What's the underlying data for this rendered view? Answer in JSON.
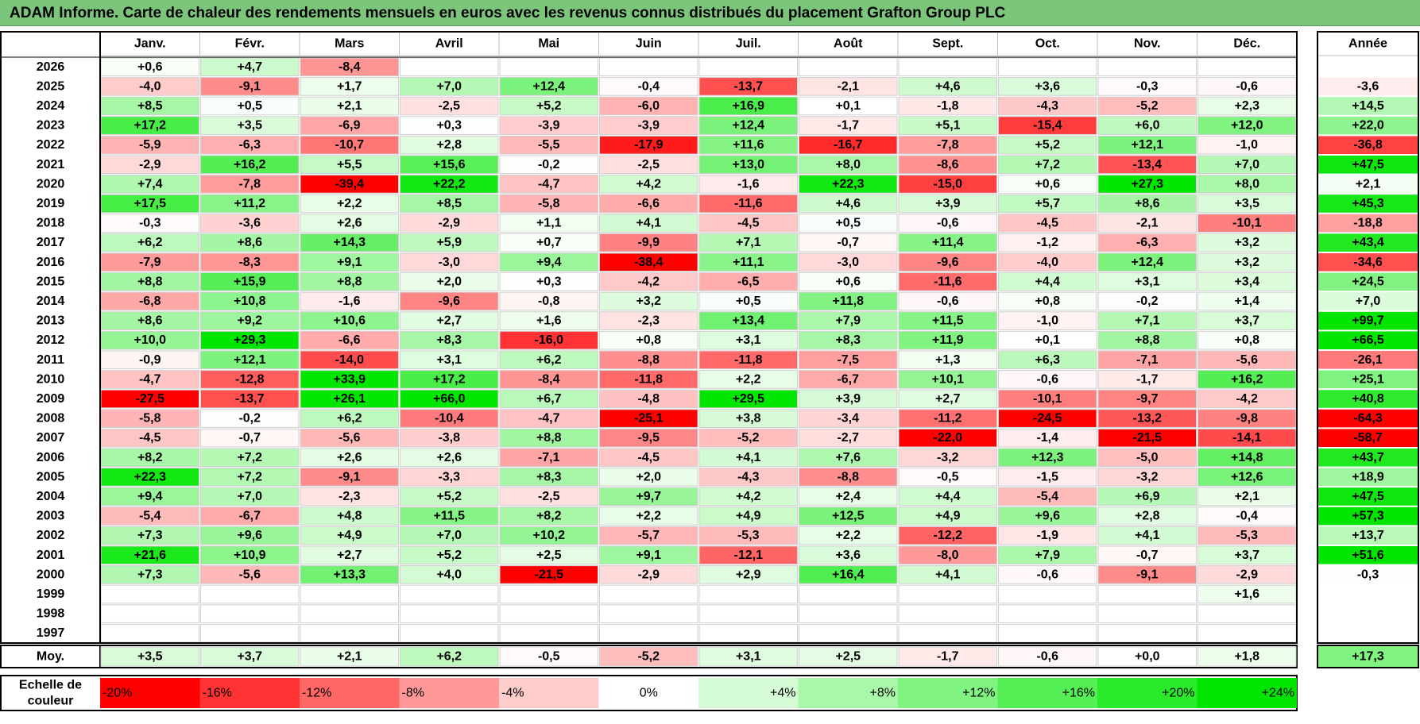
{
  "title": "ADAM Informe. Carte de chaleur des rendements mensuels en euros avec les revenus connus distribués du placement Grafton Group PLC",
  "chart_data": {
    "type": "heatmap",
    "columns": [
      "Janv.",
      "Févr.",
      "Mars",
      "Avril",
      "Mai",
      "Juin",
      "Juil.",
      "Août",
      "Sept.",
      "Oct.",
      "Nov.",
      "Déc."
    ],
    "year_column_label": "Année",
    "average_label": "Moy.",
    "scale_label": "Echelle de couleur",
    "rows": [
      {
        "year": "2026",
        "values": [
          "+0,6",
          "+4,7",
          "-8,4",
          "",
          "",
          "",
          "",
          "",
          "",
          "",
          "",
          ""
        ],
        "annual": ""
      },
      {
        "year": "2025",
        "values": [
          "-4,0",
          "-9,1",
          "+1,7",
          "+7,0",
          "+12,4",
          "-0,4",
          "-13,7",
          "-2,1",
          "+4,6",
          "+3,6",
          "-0,3",
          "-0,6"
        ],
        "annual": "-3,6"
      },
      {
        "year": "2024",
        "values": [
          "+8,5",
          "+0,5",
          "+2,1",
          "-2,5",
          "+5,2",
          "-6,0",
          "+16,9",
          "+0,1",
          "-1,8",
          "-4,3",
          "-5,2",
          "+2,3"
        ],
        "annual": "+14,5"
      },
      {
        "year": "2023",
        "values": [
          "+17,2",
          "+3,5",
          "-6,9",
          "+0,3",
          "-3,9",
          "-3,9",
          "+12,4",
          "-1,7",
          "+5,1",
          "-15,4",
          "+6,0",
          "+12,0"
        ],
        "annual": "+22,0"
      },
      {
        "year": "2022",
        "values": [
          "-5,9",
          "-6,3",
          "-10,7",
          "+2,8",
          "-5,5",
          "-17,9",
          "+11,6",
          "-16,7",
          "-7,8",
          "+5,2",
          "+12,1",
          "-1,0"
        ],
        "annual": "-36,8"
      },
      {
        "year": "2021",
        "values": [
          "-2,9",
          "+16,2",
          "+5,5",
          "+15,6",
          "-0,2",
          "-2,5",
          "+13,0",
          "+8,0",
          "-8,6",
          "+7,2",
          "-13,4",
          "+7,0"
        ],
        "annual": "+47,5"
      },
      {
        "year": "2020",
        "values": [
          "+7,4",
          "-7,8",
          "-39,4",
          "+22,2",
          "-4,7",
          "+4,2",
          "-1,6",
          "+22,3",
          "-15,0",
          "+0,6",
          "+27,3",
          "+8,0"
        ],
        "annual": "+2,1"
      },
      {
        "year": "2019",
        "values": [
          "+17,5",
          "+11,2",
          "+2,2",
          "+8,5",
          "-5,8",
          "-6,6",
          "-11,6",
          "+4,6",
          "+3,9",
          "+5,7",
          "+8,6",
          "+3,5"
        ],
        "annual": "+45,3"
      },
      {
        "year": "2018",
        "values": [
          "-0,3",
          "-3,6",
          "+2,6",
          "-2,9",
          "+1,1",
          "+4,1",
          "-4,5",
          "+0,5",
          "-0,6",
          "-4,5",
          "-2,1",
          "-10,1"
        ],
        "annual": "-18,8"
      },
      {
        "year": "2017",
        "values": [
          "+6,2",
          "+8,6",
          "+14,3",
          "+5,9",
          "+0,7",
          "-9,9",
          "+7,1",
          "-0,7",
          "+11,4",
          "-1,2",
          "-6,3",
          "+3,2"
        ],
        "annual": "+43,4"
      },
      {
        "year": "2016",
        "values": [
          "-7,9",
          "-8,3",
          "+9,1",
          "-3,0",
          "+9,4",
          "-38,4",
          "+11,1",
          "-3,0",
          "-9,6",
          "-4,0",
          "+12,4",
          "+3,2"
        ],
        "annual": "-34,6"
      },
      {
        "year": "2015",
        "values": [
          "+8,8",
          "+15,9",
          "+8,8",
          "+2,0",
          "+0,3",
          "-4,2",
          "-6,5",
          "+0,6",
          "-11,6",
          "+4,4",
          "+3,1",
          "+3,4"
        ],
        "annual": "+24,5"
      },
      {
        "year": "2014",
        "values": [
          "-6,8",
          "+10,8",
          "-1,6",
          "-9,6",
          "-0,8",
          "+3,2",
          "+0,5",
          "+11,8",
          "-0,6",
          "+0,8",
          "-0,2",
          "+1,4"
        ],
        "annual": "+7,0"
      },
      {
        "year": "2013",
        "values": [
          "+8,6",
          "+9,2",
          "+10,6",
          "+2,7",
          "+1,6",
          "-2,3",
          "+13,4",
          "+7,9",
          "+11,5",
          "-1,0",
          "+7,1",
          "+3,7"
        ],
        "annual": "+99,7"
      },
      {
        "year": "2012",
        "values": [
          "+10,0",
          "+29,3",
          "-6,6",
          "+8,3",
          "-16,0",
          "+0,8",
          "+3,1",
          "+8,3",
          "+11,9",
          "+0,1",
          "+8,8",
          "+0,8"
        ],
        "annual": "+66,5"
      },
      {
        "year": "2011",
        "values": [
          "-0,9",
          "+12,1",
          "-14,0",
          "+3,1",
          "+6,2",
          "-8,8",
          "-11,8",
          "-7,5",
          "+1,3",
          "+6,3",
          "-7,1",
          "-5,6"
        ],
        "annual": "-26,1"
      },
      {
        "year": "2010",
        "values": [
          "-4,7",
          "-12,8",
          "+33,9",
          "+17,2",
          "-8,4",
          "-11,8",
          "+2,2",
          "-6,7",
          "+10,1",
          "-0,6",
          "-1,7",
          "+16,2"
        ],
        "annual": "+25,1"
      },
      {
        "year": "2009",
        "values": [
          "-27,5",
          "-13,7",
          "+26,1",
          "+66,0",
          "+6,7",
          "-4,8",
          "+29,5",
          "+3,9",
          "+2,7",
          "-10,1",
          "-9,7",
          "-4,2"
        ],
        "annual": "+40,8"
      },
      {
        "year": "2008",
        "values": [
          "-5,8",
          "-0,2",
          "+6,2",
          "-10,4",
          "-4,7",
          "-25,1",
          "+3,8",
          "-3,4",
          "-11,2",
          "-24,5",
          "-13,2",
          "-9,8"
        ],
        "annual": "-64,3"
      },
      {
        "year": "2007",
        "values": [
          "-4,5",
          "-0,7",
          "-5,6",
          "-3,8",
          "+8,8",
          "-9,5",
          "-5,2",
          "-2,7",
          "-22,0",
          "-1,4",
          "-21,5",
          "-14,1"
        ],
        "annual": "-58,7"
      },
      {
        "year": "2006",
        "values": [
          "+8,2",
          "+7,2",
          "+2,6",
          "+2,6",
          "-7,1",
          "-4,5",
          "+4,1",
          "+7,6",
          "-3,2",
          "+12,3",
          "-5,0",
          "+14,8"
        ],
        "annual": "+43,7"
      },
      {
        "year": "2005",
        "values": [
          "+22,3",
          "+7,2",
          "-9,1",
          "-3,3",
          "+8,3",
          "+2,0",
          "-4,3",
          "-8,8",
          "-0,5",
          "-1,5",
          "-3,2",
          "+12,6"
        ],
        "annual": "+18,9"
      },
      {
        "year": "2004",
        "values": [
          "+9,4",
          "+7,0",
          "-2,3",
          "+5,2",
          "-2,5",
          "+9,7",
          "+4,2",
          "+2,4",
          "+4,4",
          "-5,4",
          "+6,9",
          "+2,1"
        ],
        "annual": "+47,5"
      },
      {
        "year": "2003",
        "values": [
          "-5,4",
          "-6,7",
          "+4,8",
          "+11,5",
          "+8,2",
          "+2,2",
          "+4,9",
          "+12,5",
          "+4,9",
          "+9,6",
          "+2,8",
          "-0,4"
        ],
        "annual": "+57,3"
      },
      {
        "year": "2002",
        "values": [
          "+7,3",
          "+9,6",
          "+4,9",
          "+7,0",
          "+10,2",
          "-5,7",
          "-5,3",
          "+2,2",
          "-12,2",
          "-1,9",
          "+4,1",
          "-5,3"
        ],
        "annual": "+13,7"
      },
      {
        "year": "2001",
        "values": [
          "+21,6",
          "+10,9",
          "+2,7",
          "+5,2",
          "+2,5",
          "+9,1",
          "-12,1",
          "+3,6",
          "-8,0",
          "+7,9",
          "-0,7",
          "+3,7"
        ],
        "annual": "+51,6"
      },
      {
        "year": "2000",
        "values": [
          "+7,3",
          "-5,6",
          "+13,3",
          "+4,0",
          "-21,5",
          "-2,9",
          "+2,9",
          "+16,4",
          "+4,1",
          "-0,6",
          "-9,1",
          "-2,9"
        ],
        "annual": "-0,3"
      },
      {
        "year": "1999",
        "values": [
          "",
          "",
          "",
          "",
          "",
          "",
          "",
          "",
          "",
          "",
          "",
          "+1,6"
        ],
        "annual": ""
      },
      {
        "year": "1998",
        "values": [
          "",
          "",
          "",
          "",
          "",
          "",
          "",
          "",
          "",
          "",
          "",
          ""
        ],
        "annual": ""
      },
      {
        "year": "1997",
        "values": [
          "",
          "",
          "",
          "",
          "",
          "",
          "",
          "",
          "",
          "",
          "",
          ""
        ],
        "annual": ""
      }
    ],
    "averages": [
      "+3,5",
      "+3,7",
      "+2,1",
      "+6,2",
      "-0,5",
      "-5,2",
      "+3,1",
      "+2,5",
      "-1,7",
      "-0,6",
      "+0,0",
      "+1,8"
    ],
    "average_annual": "+17,3",
    "scale": [
      {
        "label": "-20%",
        "value": -20
      },
      {
        "label": "-16%",
        "value": -16
      },
      {
        "label": "-12%",
        "value": -12
      },
      {
        "label": "-8%",
        "value": -8
      },
      {
        "label": "-4%",
        "value": -4
      },
      {
        "label": "0%",
        "value": 0
      },
      {
        "label": "+4%",
        "value": 4
      },
      {
        "label": "+8%",
        "value": 8
      },
      {
        "label": "+12%",
        "value": 12
      },
      {
        "label": "+16%",
        "value": 16
      },
      {
        "label": "+20%",
        "value": 20
      },
      {
        "label": "+24%",
        "value": 24
      }
    ],
    "colors": {
      "negative_max": "#ff0000",
      "neutral": "#ffffff",
      "positive_max": "#00e600",
      "title_bar": "#7cc67c"
    }
  }
}
